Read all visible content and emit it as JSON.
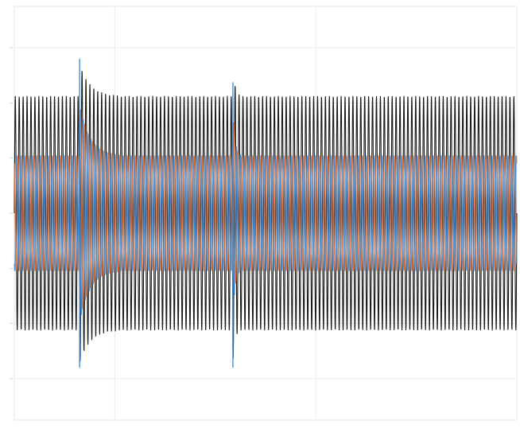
{
  "chart_data": {
    "type": "line",
    "title": "",
    "xlabel": "",
    "ylabel": "",
    "grid": true,
    "legend": "none",
    "xlim": [
      0,
      1
    ],
    "ylim": [
      -1.5,
      1.5
    ],
    "ytick_values": [
      1.2,
      0.8,
      0.4,
      0,
      -0.4,
      -0.8,
      -1.2
    ],
    "xtick_values": [
      0.2,
      0.6,
      1.0
    ],
    "envelope": {
      "black_amplitude": 0.85,
      "orange_amplitude": 0.42,
      "blue_amplitude": 0.42,
      "cycles": 128,
      "events": [
        {
          "x": 0.13,
          "peak": 1.12,
          "trough": -1.12,
          "settle_width": 0.02
        },
        {
          "x": 0.435,
          "peak": 0.95,
          "trough": -1.12,
          "settle_width": 0.004
        }
      ]
    },
    "series": [
      {
        "color": "#1a1a1a",
        "role": "outer"
      },
      {
        "color": "#e8743b",
        "role": "inner"
      },
      {
        "color": "#4a8fd4",
        "role": "inner"
      }
    ]
  }
}
